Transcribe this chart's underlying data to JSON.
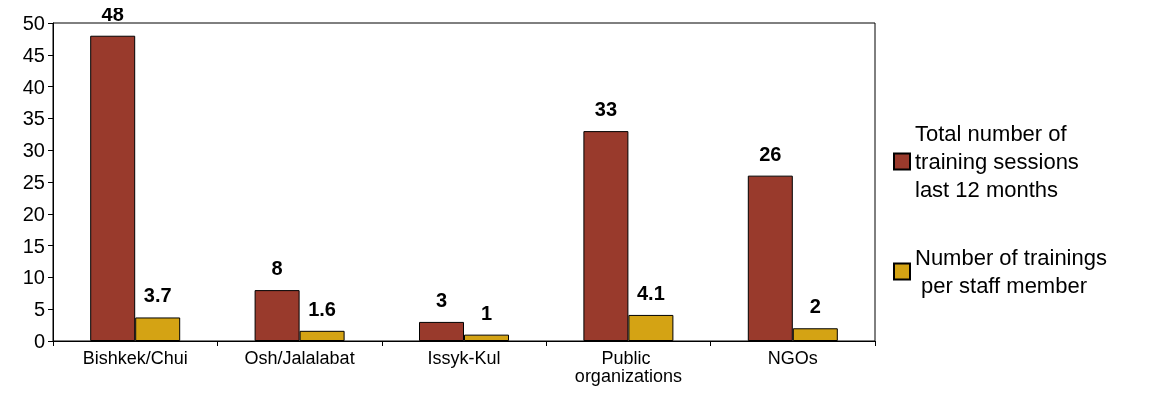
{
  "chart_data": {
    "type": "bar",
    "categories": [
      "Bishkek/Chui",
      "Osh/Jalalabat",
      "Issyk-Kul",
      "Public organizations",
      "NGOs"
    ],
    "series": [
      {
        "name": "Total number of training sessions last 12 months",
        "color": "#993a2c",
        "values": [
          48,
          8,
          3,
          33,
          26
        ]
      },
      {
        "name": "Number of trainings per staff member",
        "color": "#d4a314",
        "values": [
          3.7,
          1.6,
          1,
          4.1,
          2
        ]
      }
    ],
    "ylim": [
      0,
      50
    ],
    "yticks": [
      0,
      5,
      10,
      15,
      20,
      25,
      30,
      35,
      40,
      45,
      50
    ],
    "grid": false,
    "legend": "right",
    "data_labels": true
  }
}
